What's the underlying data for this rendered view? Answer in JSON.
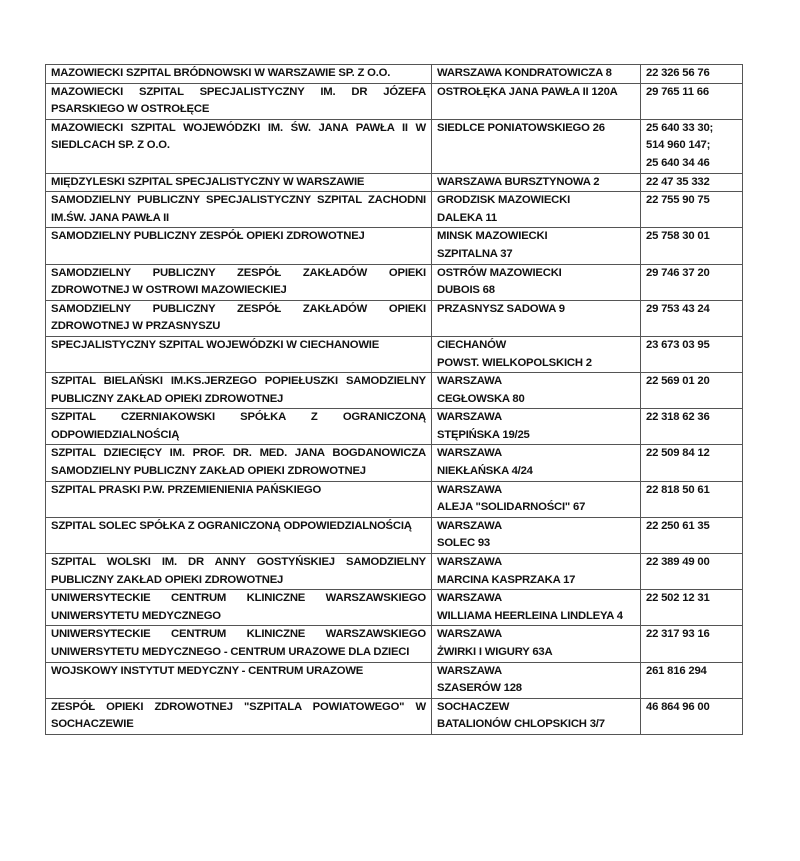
{
  "rows": [
    {
      "name": "MAZOWIECKI SZPITAL BRÓDNOWSKI W WARSZAWIE SP. Z O.O.",
      "address": "WARSZAWA KONDRATOWICZA 8",
      "phone": "22 326 56 76"
    },
    {
      "name": "MAZOWIECKI SZPITAL SPECJALISTYCZNY IM. DR JÓZEFA PSARSKIEGO W OSTROŁĘCE",
      "address": "OSTROŁĘKA JANA PAWŁA II 120A",
      "phone": "29 765 11 66"
    },
    {
      "name": "MAZOWIECKI SZPITAL WOJEWÓDZKI IM. ŚW. JANA PAWŁA II W SIEDLCACH SP. Z O.O.",
      "address": "SIEDLCE PONIATOWSKIEGO 26",
      "phone": "25 640 33 30;\n514 960 147;\n25 640 34 46"
    },
    {
      "name": "MIĘDZYLESKI SZPITAL SPECJALISTYCZNY W WARSZAWIE",
      "address": "WARSZAWA BURSZTYNOWA 2",
      "phone": "22 47 35 332"
    },
    {
      "name": "SAMODZIELNY PUBLICZNY SPECJALISTYCZNY SZPITAL ZACHODNI IM.ŚW. JANA PAWŁA II",
      "address": "GRODZISK MAZOWIECKI\nDALEKA 11",
      "phone": "22 755 90 75"
    },
    {
      "name": "SAMODZIELNY PUBLICZNY ZESPÓŁ OPIEKI ZDROWOTNEJ",
      "address": "MINSK MAZOWIECKI\nSZPITALNA 37",
      "phone": "25 758 30 01"
    },
    {
      "name": "SAMODZIELNY PUBLICZNY ZESPÓŁ ZAKŁADÓW OPIEKI ZDROWOTNEJ W OSTROWI MAZOWIECKIEJ",
      "address": "OSTRÓW MAZOWIECKI\nDUBOIS 68",
      "phone": "29 746 37 20"
    },
    {
      "name": "SAMODZIELNY PUBLICZNY ZESPÓŁ ZAKŁADÓW OPIEKI ZDROWOTNEJ W PRZASNYSZU",
      "address": "PRZASNYSZ SADOWA 9",
      "phone": "29 753 43 24"
    },
    {
      "name": "SPECJALISTYCZNY SZPITAL WOJEWÓDZKI W CIECHANOWIE",
      "address": "CIECHANÓW\nPOWST. WIELKOPOLSKICH 2",
      "phone": "23 673 03 95"
    },
    {
      "name": "SZPITAL BIELAŃSKI IM.KS.JERZEGO POPIEŁUSZKI SAMODZIELNY PUBLICZNY ZAKŁAD OPIEKI ZDROWOTNEJ",
      "address": "WARSZAWA\nCEGŁOWSKA 80",
      "phone": "22 569 01 20"
    },
    {
      "name": "SZPITAL CZERNIAKOWSKI SPÓŁKA Z OGRANICZONĄ ODPOWIEDZIALNOŚCIĄ",
      "address": "WARSZAWA\nSTĘPIŃSKA 19/25",
      "phone": "22 318 62 36"
    },
    {
      "name": "SZPITAL DZIECIĘCY IM. PROF. DR. MED. JANA BOGDANOWICZA SAMODZIELNY PUBLICZNY ZAKŁAD OPIEKI ZDROWOTNEJ",
      "address": "WARSZAWA\nNIEKŁAŃSKA 4/24",
      "phone": "22 509 84 12"
    },
    {
      "name": "SZPITAL PRASKI P.W. PRZEMIENIENIA PAŃSKIEGO",
      "address": "WARSZAWA\nALEJA \"SOLIDARNOŚCI\" 67",
      "phone": "22 818 50 61"
    },
    {
      "name": "SZPITAL SOLEC SPÓŁKA Z OGRANICZONĄ ODPOWIEDZIALNOŚCIĄ",
      "address": "WARSZAWA\nSOLEC 93",
      "phone": "22 250 61 35"
    },
    {
      "name": "SZPITAL WOLSKI IM. DR ANNY GOSTYŃSKIEJ SAMODZIELNY PUBLICZNY ZAKŁAD OPIEKI ZDROWOTNEJ",
      "address": "WARSZAWA\nMARCINA KASPRZAKA 17",
      "phone": "22 389 49 00"
    },
    {
      "name": "UNIWERSYTECKIE CENTRUM KLINICZNE WARSZAWSKIEGO UNIWERSYTETU MEDYCZNEGO",
      "address": "WARSZAWA\nWILLIAMA HEERLEINA LINDLEYA 4",
      "phone": "22 502 12 31"
    },
    {
      "name": "UNIWERSYTECKIE CENTRUM KLINICZNE WARSZAWSKIEGO UNIWERSYTETU MEDYCZNEGO - CENTRUM URAZOWE DLA DZIECI",
      "address": "WARSZAWA\nŻWIRKI I WIGURY 63A",
      "phone": "22 317 93 16"
    },
    {
      "name": "WOJSKOWY INSTYTUT MEDYCZNY - CENTRUM URAZOWE",
      "address": "WARSZAWA\nSZASERÓW 128",
      "phone": "261 816 294"
    },
    {
      "name": "ZESPÓŁ OPIEKI ZDROWOTNEJ \"SZPITALA POWIATOWEGO\" W SOCHACZEWIE",
      "address": "SOCHACZEW\nBATALIONÓW CHLOPSKICH 3/7",
      "phone": "46 864 96 00"
    }
  ]
}
